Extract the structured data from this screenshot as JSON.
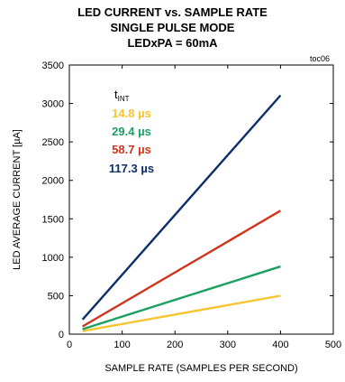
{
  "chart_data": {
    "type": "line",
    "title": [
      "LED CURRENT vs. SAMPLE RATE",
      "SINGLE PULSE MODE",
      "LEDxPA = 60mA"
    ],
    "tag": "toc06",
    "xlabel": "SAMPLE RATE (SAMPLES PER SECOND)",
    "ylabel": "LED AVERAGE CURRENT  [µA]",
    "xlim": [
      0,
      500
    ],
    "ylim": [
      0,
      3500
    ],
    "xticks": [
      0,
      100,
      200,
      300,
      400,
      500
    ],
    "yticks": [
      0,
      500,
      1000,
      1500,
      2000,
      2500,
      3000,
      3500
    ],
    "grid": false,
    "legend": {
      "title": "t",
      "title_sub": "INT",
      "placement": "top-left"
    },
    "series": [
      {
        "name": "14.8 µs",
        "color": "#f7c531",
        "x": [
          25,
          400
        ],
        "y": [
          40,
          500
        ]
      },
      {
        "name": "29.4 µs",
        "color": "#1aa060",
        "x": [
          25,
          400
        ],
        "y": [
          65,
          880
        ]
      },
      {
        "name": "58.7 µs",
        "color": "#d1341b",
        "x": [
          25,
          400
        ],
        "y": [
          100,
          1605
        ]
      },
      {
        "name": "117.3 µs",
        "color": "#0d2d6b",
        "x": [
          25,
          400
        ],
        "y": [
          190,
          3105
        ]
      }
    ]
  }
}
